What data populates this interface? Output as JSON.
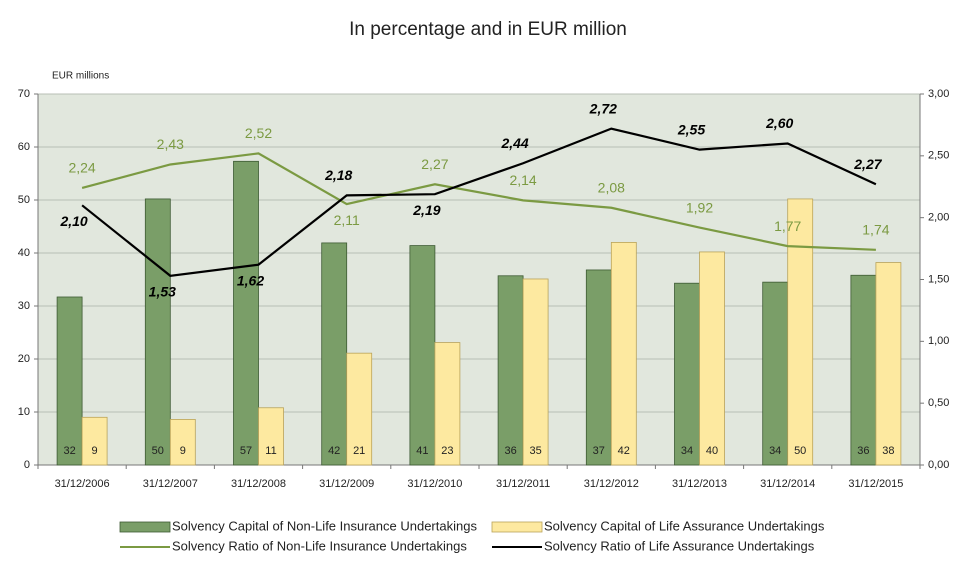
{
  "chart_data": {
    "type": "bar_line",
    "title": "In percentage and in EUR million",
    "ylabel": "EUR millions",
    "categories": [
      "31/12/2006",
      "31/12/2007",
      "31/12/2008",
      "31/12/2009",
      "31/12/2010",
      "31/12/2011",
      "31/12/2012",
      "31/12/2013",
      "31/12/2014",
      "31/12/2015"
    ],
    "series": [
      {
        "name": "Solvency Capital of Non-Life Insurance Undertakings",
        "kind": "bar",
        "color": "#7a9e68",
        "values": [
          31.7,
          50.2,
          57.3,
          41.9,
          41.4,
          35.7,
          36.8,
          34.3,
          34.5,
          35.8
        ],
        "value_labels": [
          "32",
          "50",
          "57",
          "42",
          "41",
          "36",
          "37",
          "34",
          "34",
          "36"
        ]
      },
      {
        "name": "Solvency Capital of Life Assurance Undertakings",
        "kind": "bar",
        "color": "#fde9a0",
        "values": [
          9.0,
          8.6,
          10.8,
          21.1,
          23.1,
          35.1,
          42.0,
          40.2,
          50.2,
          38.2
        ],
        "value_labels": [
          "9",
          "9",
          "11",
          "21",
          "23",
          "35",
          "42",
          "40",
          "50",
          "38"
        ]
      },
      {
        "name": "Solvency Ratio of Non-Life Insurance Undertakings",
        "kind": "line",
        "axis": "y2",
        "color": "#7b9a42",
        "values": [
          2.24,
          2.43,
          2.52,
          2.11,
          2.27,
          2.14,
          2.08,
          1.92,
          1.77,
          1.74
        ],
        "value_labels": [
          "2,24",
          "2,43",
          "2,52",
          "2,11",
          "2,27",
          "2,14",
          "2,08",
          "1,92",
          "1,77",
          "1,74"
        ]
      },
      {
        "name": "Solvency Ratio of Life Assurance Undertakings",
        "kind": "line",
        "axis": "y2",
        "color": "#000000",
        "values": [
          2.1,
          1.53,
          1.62,
          2.18,
          2.19,
          2.44,
          2.72,
          2.55,
          2.6,
          2.27
        ],
        "value_labels": [
          "2,10",
          "1,53",
          "1,62",
          "2,18",
          "2,19",
          "2,44",
          "2,72",
          "2,55",
          "2,60",
          "2,27"
        ]
      }
    ],
    "ylim": [
      0,
      70
    ],
    "yticks": [
      0,
      10,
      20,
      30,
      40,
      50,
      60,
      70
    ],
    "y2lim": [
      0,
      3
    ],
    "y2ticks": [
      {
        "value": 0,
        "label": "0,00"
      },
      {
        "value": 0.5,
        "label": "0,50"
      },
      {
        "value": 1,
        "label": "1,00"
      },
      {
        "value": 1.5,
        "label": "1,50"
      },
      {
        "value": 2,
        "label": "2,00"
      },
      {
        "value": 2.5,
        "label": "2,50"
      },
      {
        "value": 3,
        "label": "3,00"
      }
    ],
    "grid": true,
    "legend": "bottom"
  }
}
